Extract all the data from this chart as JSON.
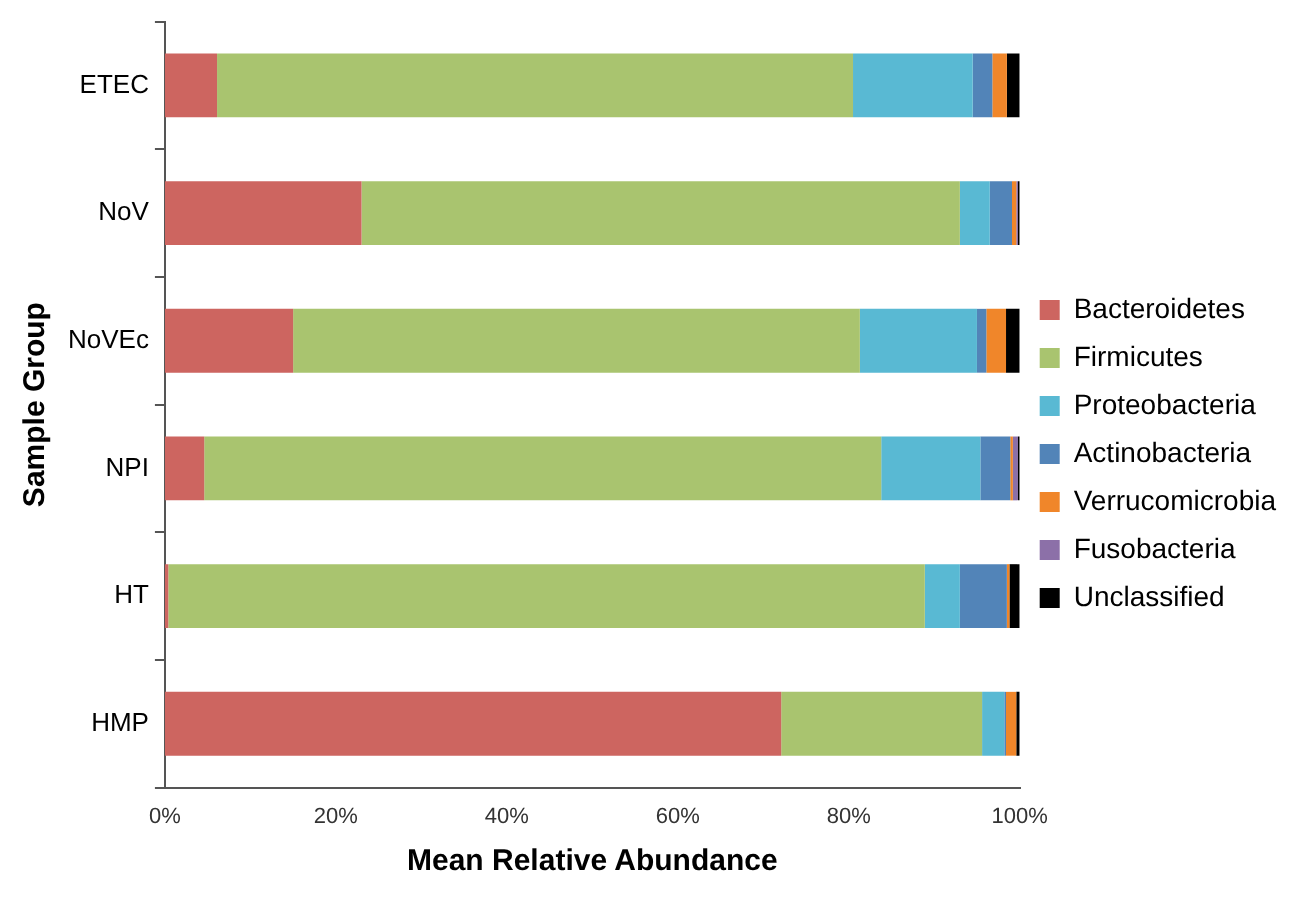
{
  "chart_data": {
    "type": "bar",
    "orientation": "horizontal",
    "stacked": true,
    "xlabel": "Mean Relative Abundance",
    "ylabel": "Sample Group",
    "categories": [
      "ETEC",
      "NoV",
      "NoVEc",
      "NPI",
      "HT",
      "HMP"
    ],
    "series": [
      {
        "name": "Bacteroidetes",
        "color": "#cd6560",
        "values": [
          6.1,
          23,
          15,
          4.6,
          0.4,
          72.1
        ]
      },
      {
        "name": "Firmicutes",
        "color": "#a9c46f",
        "values": [
          74.4,
          70,
          66.3,
          79.2,
          88.5,
          23.5
        ]
      },
      {
        "name": "Proteobacteria",
        "color": "#59b9d3",
        "values": [
          14,
          3.5,
          13.7,
          11.6,
          4.1,
          2.6
        ]
      },
      {
        "name": "Actinobacteria",
        "color": "#5284b8",
        "values": [
          2.3,
          2.6,
          1.1,
          3.5,
          5.5,
          0.2
        ]
      },
      {
        "name": "Verrucomicrobia",
        "color": "#f0862a",
        "values": [
          1.7,
          0.5,
          2.3,
          0.3,
          0.3,
          1.2
        ]
      },
      {
        "name": "Fusobacteria",
        "color": "#8c70a8",
        "values": [
          0,
          0.2,
          0,
          0.6,
          0,
          0
        ]
      },
      {
        "name": "Unclassified",
        "color": "#000000",
        "values": [
          1.5,
          0.2,
          1.6,
          0.2,
          1.2,
          0.4
        ]
      }
    ],
    "xlim": [
      0,
      100
    ],
    "xticks": [
      {
        "value": 0,
        "label": "0%"
      },
      {
        "value": 20,
        "label": "20%"
      },
      {
        "value": 40,
        "label": "40%"
      },
      {
        "value": 60,
        "label": "60%"
      },
      {
        "value": 80,
        "label": "80%"
      },
      {
        "value": 100,
        "label": "100%"
      }
    ],
    "grid": false,
    "legend": "right"
  }
}
